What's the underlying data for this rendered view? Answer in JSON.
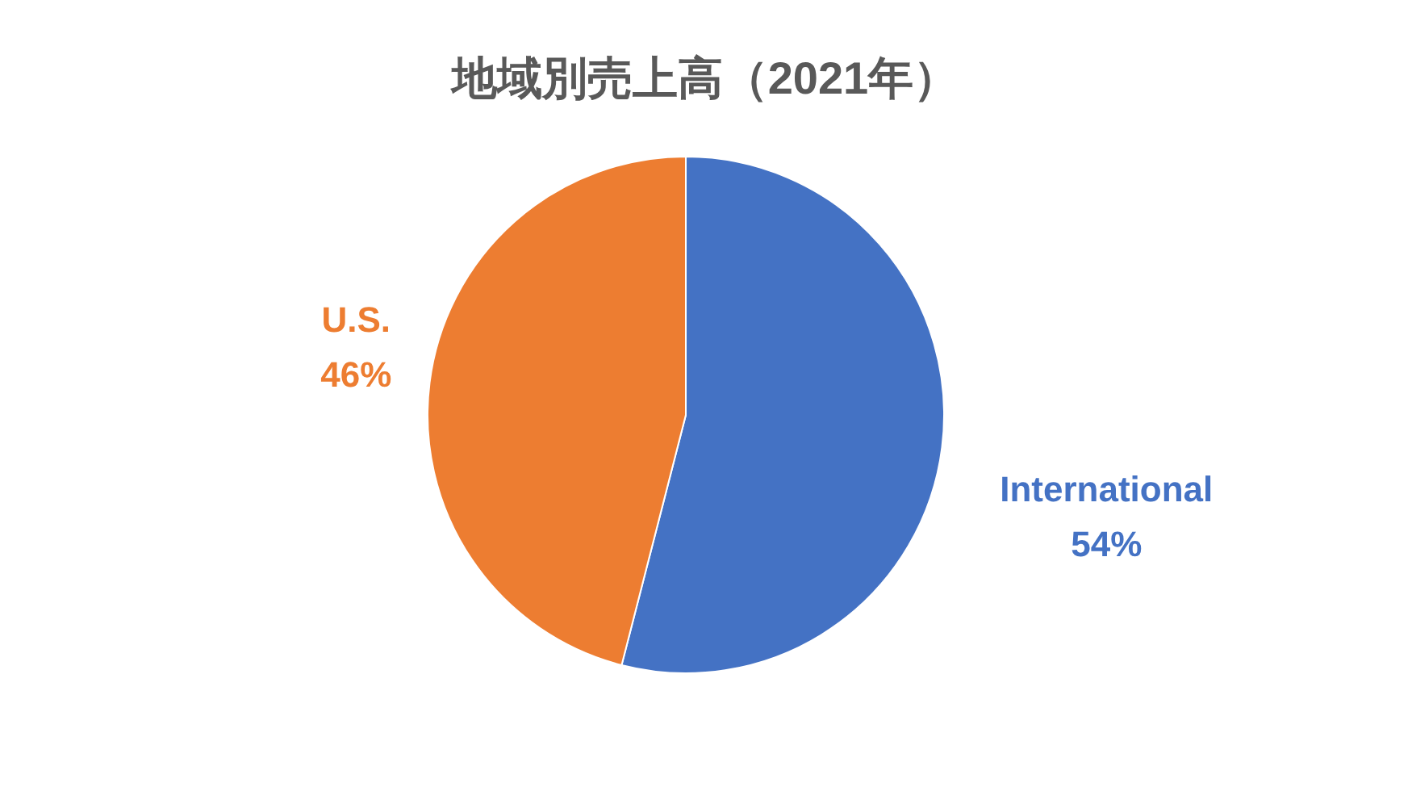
{
  "chart_data": {
    "type": "pie",
    "title": "地域別売上高（2021年）",
    "categories": [
      "International",
      "U.S."
    ],
    "values": [
      54,
      46
    ],
    "colors": [
      "#4472c4",
      "#ed7d31"
    ],
    "value_labels": [
      "54%",
      "46%"
    ]
  }
}
